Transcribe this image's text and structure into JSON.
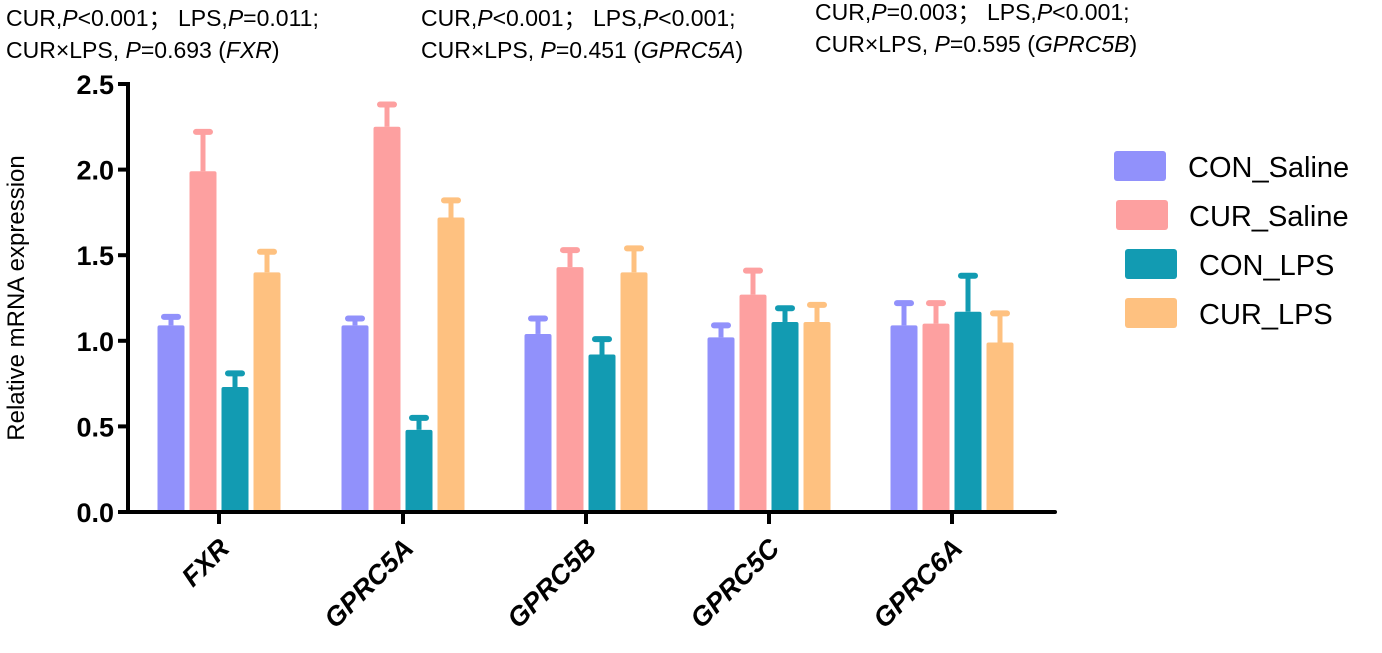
{
  "annotations": [
    {
      "line1": [
        {
          "t": "CUR,"
        },
        {
          "t": "P",
          "i": true
        },
        {
          "t": "<0.001；  LPS,"
        },
        {
          "t": "P",
          "i": true
        },
        {
          "t": "=0.011;"
        }
      ],
      "line2": [
        {
          "t": "CUR×LPS, "
        },
        {
          "t": "P",
          "i": true
        },
        {
          "t": "=0.693 ("
        },
        {
          "t": "FXR",
          "i": true
        },
        {
          "t": ")"
        }
      ]
    },
    {
      "line1": [
        {
          "t": "CUR,"
        },
        {
          "t": "P",
          "i": true
        },
        {
          "t": "<0.001；  LPS,"
        },
        {
          "t": "P",
          "i": true
        },
        {
          "t": "<0.001;"
        }
      ],
      "line2": [
        {
          "t": "CUR×LPS, "
        },
        {
          "t": "P",
          "i": true
        },
        {
          "t": "=0.451 ("
        },
        {
          "t": "GPRC5A",
          "i": true
        },
        {
          "t": ")"
        }
      ]
    },
    {
      "line1": [
        {
          "t": "CUR,"
        },
        {
          "t": "P",
          "i": true
        },
        {
          "t": "=0.003；  LPS,"
        },
        {
          "t": "P",
          "i": true
        },
        {
          "t": "<0.001;"
        }
      ],
      "line2": [
        {
          "t": "CUR×LPS, "
        },
        {
          "t": "P",
          "i": true
        },
        {
          "t": "=0.595 ("
        },
        {
          "t": "GPRC5B",
          "i": true
        },
        {
          "t": ")"
        }
      ]
    }
  ],
  "chart_data": {
    "type": "bar",
    "title": "",
    "xlabel": "",
    "ylabel": "Relative mRNA expression",
    "ylim": [
      0,
      2.5
    ],
    "yticks": [
      "0.0",
      "0.5",
      "1.0",
      "1.5",
      "2.0",
      "2.5"
    ],
    "ytick_values": [
      0,
      0.5,
      1.0,
      1.5,
      2.0,
      2.5
    ],
    "grid": false,
    "legend_position": "right",
    "categories": [
      "FXR",
      "GPRC5A",
      "GPRC5B",
      "GPRC5C",
      "GPRC6A"
    ],
    "series": [
      {
        "name": "CON_Saline",
        "color": "#9191fb",
        "values": [
          1.09,
          1.09,
          1.04,
          1.02,
          1.09
        ],
        "error_upper": [
          1.14,
          1.13,
          1.13,
          1.09,
          1.22
        ]
      },
      {
        "name": "CUR_Saline",
        "color": "#fda0a0",
        "values": [
          1.99,
          2.25,
          1.43,
          1.27,
          1.1
        ],
        "error_upper": [
          2.22,
          2.38,
          1.53,
          1.41,
          1.22
        ]
      },
      {
        "name": "CON_LPS",
        "color": "#129bb2",
        "values": [
          0.73,
          0.48,
          0.92,
          1.11,
          1.17
        ],
        "error_upper": [
          0.81,
          0.55,
          1.01,
          1.19,
          1.38
        ]
      },
      {
        "name": "CUR_LPS",
        "color": "#fec180",
        "values": [
          1.4,
          1.72,
          1.4,
          1.11,
          0.99
        ],
        "error_upper": [
          1.52,
          1.82,
          1.54,
          1.21,
          1.16
        ]
      }
    ]
  }
}
